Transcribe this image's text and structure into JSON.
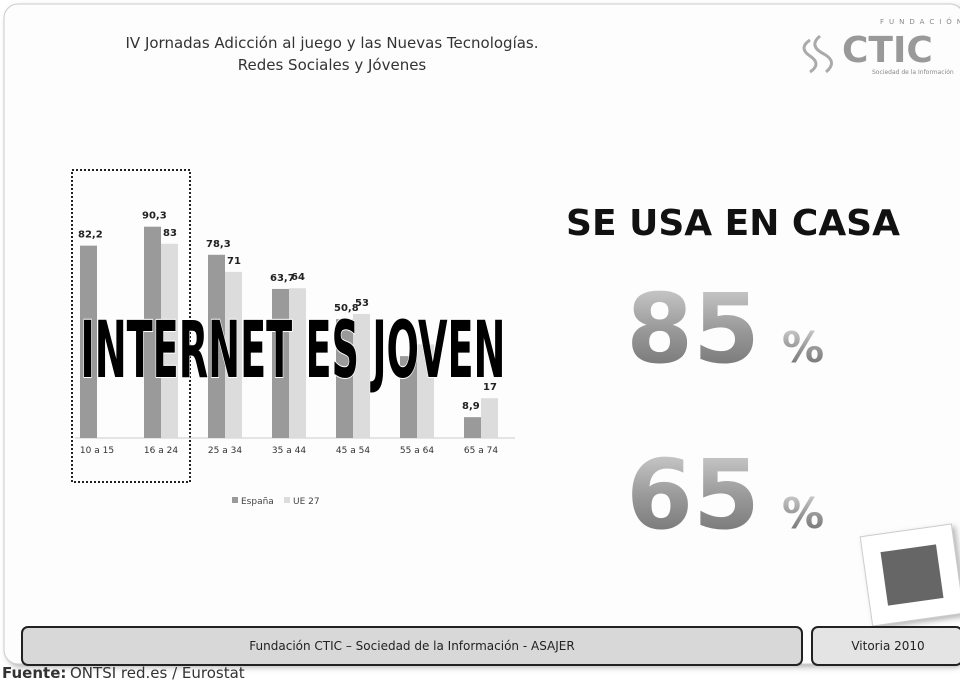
{
  "header": {
    "title_line1": "IV Jornadas Adicción al juego y las Nuevas Tecnologías.",
    "title_line2": "Redes Sociales y Jóvenes"
  },
  "logo": {
    "top": "FUNDACIÓN",
    "name": "CTIC",
    "sub": "Sociedad de la Información"
  },
  "overlay": "INTERNET ES JOVEN",
  "headline": "SE USA EN CASA",
  "stats": [
    {
      "number": "85",
      "unit": "%"
    },
    {
      "number": "65",
      "unit": "%"
    }
  ],
  "footer": {
    "left": "Fundación CTIC – Sociedad de la Información  - ASAJER",
    "right": "Vitoria 2010",
    "source_label": "Fuente:",
    "source": "ONTSI red.es / Eurostat"
  },
  "chart_data": {
    "type": "bar",
    "categories": [
      "10 a 15",
      "16 a 24",
      "25 a 34",
      "35 a 44",
      "45 a 54",
      "55 a 64",
      "65 a 74"
    ],
    "series": [
      {
        "name": "España",
        "color": "#9a9a9a",
        "values": [
          82.2,
          90.3,
          78.3,
          63.7,
          50.8,
          35,
          8.9
        ],
        "value_labels": [
          "82,2",
          "90,3",
          "78,3",
          "63,7",
          "50,8",
          null,
          "8,9"
        ]
      },
      {
        "name": "UE 27",
        "color": "#dcdcdc",
        "values": [
          null,
          83,
          71,
          64,
          53,
          40,
          17
        ],
        "value_labels": [
          null,
          "83",
          "71",
          "64",
          "53",
          null,
          "17"
        ]
      }
    ]
  }
}
